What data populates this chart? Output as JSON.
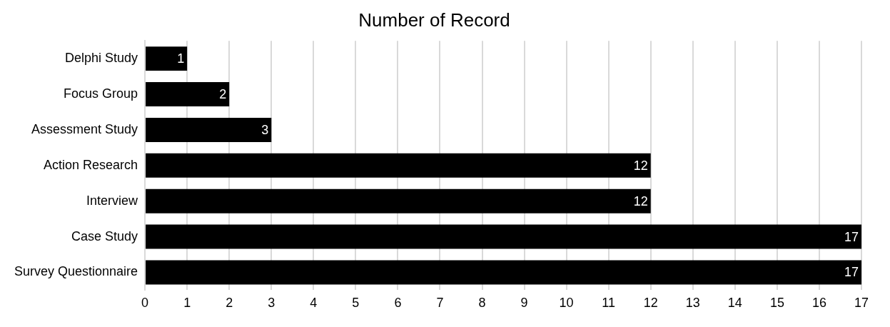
{
  "chart_data": {
    "type": "bar",
    "orientation": "horizontal",
    "title": "Number of Record",
    "categories": [
      "Delphi Study",
      "Focus Group",
      "Assessment Study",
      "Action Research",
      "Interview",
      "Case Study",
      "Survey Questionnaire"
    ],
    "values": [
      1,
      2,
      3,
      12,
      12,
      17,
      17
    ],
    "color": "#000000",
    "xlim": [
      0,
      17
    ],
    "xticks": [
      0,
      1,
      2,
      3,
      4,
      5,
      6,
      7,
      8,
      9,
      10,
      11,
      12,
      13,
      14,
      15,
      16,
      17
    ],
    "grid": "x",
    "legend": false,
    "data_labels": true
  }
}
